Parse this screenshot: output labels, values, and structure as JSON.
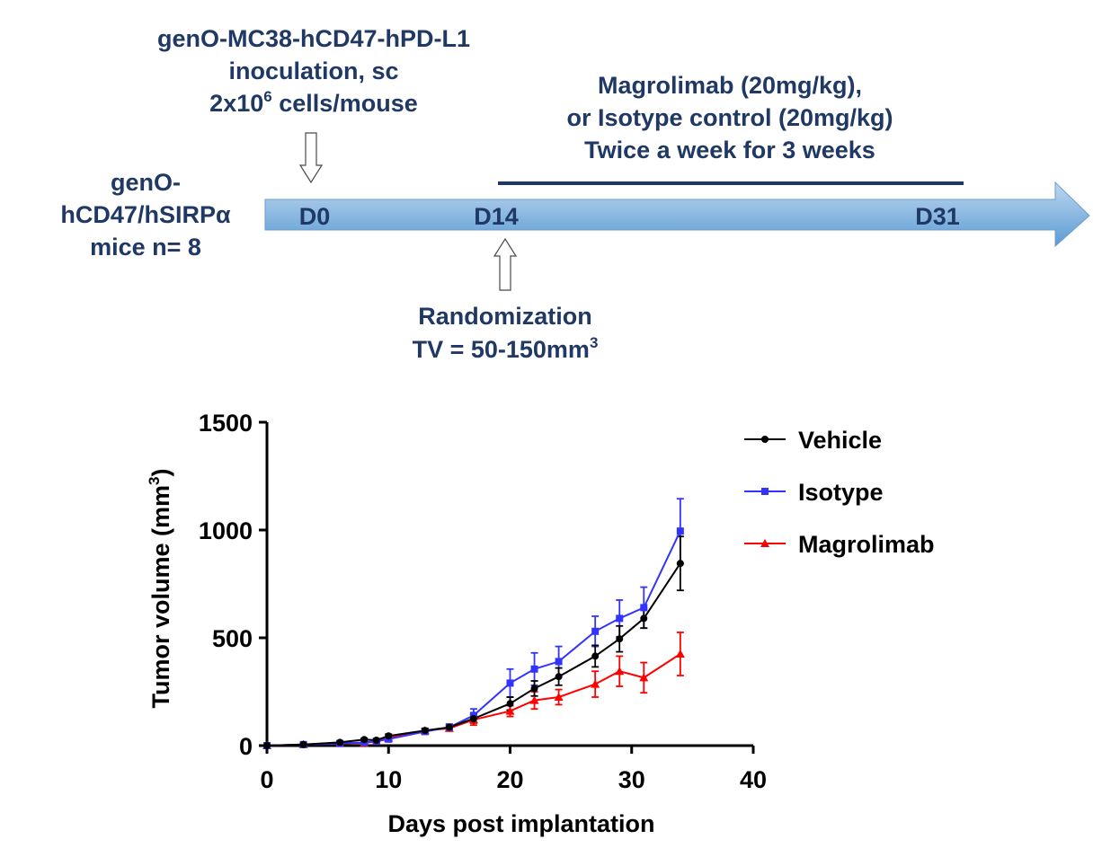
{
  "protocol": {
    "inoculation": {
      "line1": "genO-MC38-hCD47-hPD-L1",
      "line2": "inoculation, sc",
      "line3_prefix": "2x10",
      "line3_sup": "6",
      "line3_suffix": " cells/mouse"
    },
    "treatment": {
      "line1": "Magrolimab (20mg/kg),",
      "line2": "or Isotype control (20mg/kg)",
      "line3": "Twice a week for 3 weeks"
    },
    "mice": {
      "line1": "genO-",
      "line2": "hCD47/hSIRPα",
      "line3": "mice n= 8"
    },
    "timeline": {
      "day0": "D0",
      "day14": "D14",
      "day31": "D31"
    },
    "randomization": {
      "line1": "Randomization",
      "line2_prefix": "TV = 50-150mm",
      "line2_sup": "3"
    },
    "colors": {
      "text": "#1f3864",
      "arrow_top": "#bdd7ee",
      "arrow_bottom": "#5b9bd5",
      "treatment_bar": "#1f3864"
    }
  },
  "chart_data": {
    "type": "line",
    "xlabel": "Days post implantation",
    "ylabel_prefix": "Tumor volume (mm",
    "ylabel_sup": "3",
    "ylabel_suffix": ")",
    "xlim": [
      0,
      40
    ],
    "ylim": [
      0,
      1500
    ],
    "xticks": [
      0,
      10,
      20,
      30,
      40
    ],
    "yticks": [
      0,
      500,
      1000,
      1500
    ],
    "grid": false,
    "legend_position": "top-right",
    "series": [
      {
        "name": "Vehicle",
        "color": "#000000",
        "marker": "circle",
        "x": [
          0,
          3,
          6,
          8,
          9,
          10,
          13,
          15,
          17,
          20,
          22,
          24,
          27,
          29,
          31,
          34
        ],
        "y": [
          0,
          5,
          15,
          28,
          25,
          45,
          70,
          85,
          125,
          195,
          265,
          320,
          415,
          495,
          590,
          845
        ],
        "err": [
          0,
          3,
          5,
          6,
          6,
          8,
          10,
          12,
          20,
          30,
          35,
          40,
          50,
          60,
          45,
          125
        ]
      },
      {
        "name": "Isotype",
        "color": "#3333ff",
        "marker": "square",
        "x": [
          0,
          3,
          6,
          8,
          9,
          10,
          13,
          15,
          17,
          20,
          22,
          24,
          27,
          29,
          31,
          34
        ],
        "y": [
          0,
          5,
          10,
          15,
          20,
          30,
          65,
          85,
          140,
          290,
          355,
          390,
          530,
          590,
          640,
          995
        ],
        "err": [
          0,
          3,
          4,
          5,
          5,
          6,
          10,
          15,
          30,
          65,
          75,
          70,
          70,
          85,
          95,
          150
        ]
      },
      {
        "name": "Magrolimab",
        "color": "#ff0000",
        "marker": "triangle",
        "x": [
          0,
          3,
          6,
          8,
          9,
          10,
          13,
          15,
          17,
          20,
          22,
          24,
          27,
          29,
          31,
          34
        ],
        "y": [
          0,
          5,
          10,
          12,
          20,
          35,
          70,
          80,
          120,
          160,
          210,
          225,
          285,
          345,
          315,
          425
        ],
        "err": [
          0,
          3,
          4,
          5,
          5,
          6,
          10,
          12,
          25,
          25,
          40,
          35,
          60,
          70,
          70,
          100
        ]
      }
    ]
  }
}
